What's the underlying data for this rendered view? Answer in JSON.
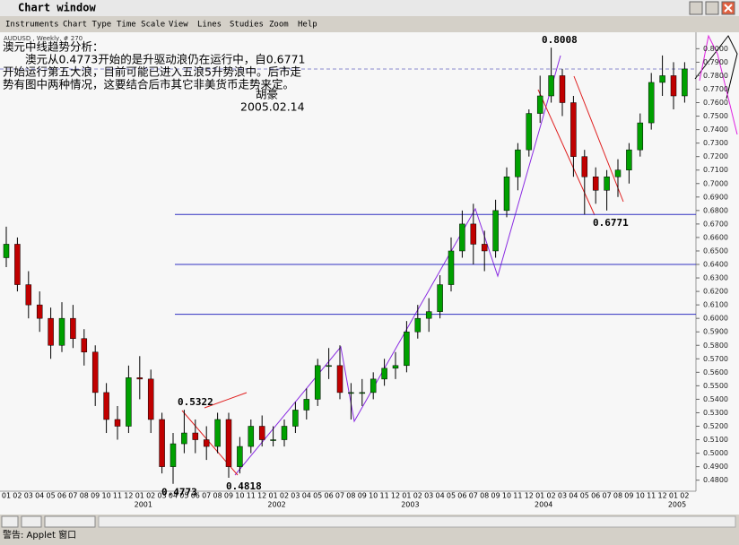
{
  "window": {
    "title": "Chart window",
    "menu": [
      "Instruments",
      "Chart Type",
      "Time Scale",
      "View",
      "Lines",
      "Studies",
      "Zoom",
      "Help"
    ],
    "status": "警告: Applet 窗口"
  },
  "chart_data": {
    "type": "candlestick",
    "symbol_label": "AUDUSD , Weekly, # 270",
    "annotation_lines": [
      "澳元中线趋势分析：",
      "　　澳元从0.4773开始的是升驱动浪仍在运行中，自0.6771",
      "开始运行第五大浪，目前可能已进入五浪5升势浪中。后市走",
      "势有图中两种情况，这要结合后市其它非美货币走势来定。",
      "胡豪",
      "2005.02.14"
    ],
    "price_labels": [
      0.5322,
      0.4773,
      0.4818,
      0.8008,
      0.6771
    ],
    "categories": [
      "01",
      "02",
      "03",
      "04",
      "05",
      "06",
      "07",
      "08",
      "09",
      "10",
      "11",
      "12",
      "01",
      "02",
      "03",
      "04",
      "05",
      "06",
      "07",
      "08",
      "09",
      "10",
      "11",
      "12",
      "01",
      "02",
      "03",
      "04",
      "05",
      "06",
      "07",
      "08",
      "09",
      "10",
      "11",
      "12",
      "01",
      "02",
      "03",
      "04",
      "05",
      "06",
      "07",
      "08",
      "09",
      "10",
      "11",
      "12",
      "01",
      "02",
      "03",
      "04",
      "05",
      "06",
      "07",
      "08",
      "09",
      "10",
      "11",
      "12",
      "01",
      "02"
    ],
    "years": [
      "2001",
      "2002",
      "2003",
      "2004",
      "2005"
    ],
    "open": [
      0.645,
      0.655,
      0.625,
      0.61,
      0.6,
      0.58,
      0.6,
      0.585,
      0.575,
      0.545,
      0.525,
      0.52,
      0.556,
      0.555,
      0.525,
      0.49,
      0.507,
      0.515,
      0.51,
      0.505,
      0.525,
      0.49,
      0.505,
      0.52,
      0.51,
      0.51,
      0.52,
      0.532,
      0.54,
      0.565,
      0.565,
      0.545,
      0.545,
      0.545,
      0.555,
      0.563,
      0.565,
      0.59,
      0.6,
      0.605,
      0.625,
      0.65,
      0.67,
      0.655,
      0.65,
      0.68,
      0.705,
      0.725,
      0.752,
      0.765,
      0.78,
      0.76,
      0.72,
      0.705,
      0.695,
      0.705,
      0.71,
      0.725,
      0.745,
      0.775,
      0.78,
      0.765
    ],
    "high": [
      0.668,
      0.66,
      0.635,
      0.62,
      0.608,
      0.612,
      0.61,
      0.592,
      0.58,
      0.552,
      0.535,
      0.565,
      0.572,
      0.562,
      0.53,
      0.515,
      0.5322,
      0.525,
      0.52,
      0.53,
      0.53,
      0.512,
      0.525,
      0.528,
      0.52,
      0.525,
      0.538,
      0.548,
      0.57,
      0.578,
      0.58,
      0.552,
      0.555,
      0.56,
      0.57,
      0.575,
      0.598,
      0.61,
      0.615,
      0.632,
      0.66,
      0.68,
      0.685,
      0.665,
      0.688,
      0.712,
      0.73,
      0.755,
      0.78,
      0.8008,
      0.785,
      0.765,
      0.725,
      0.712,
      0.71,
      0.718,
      0.73,
      0.752,
      0.782,
      0.795,
      0.79,
      0.79
    ],
    "low": [
      0.638,
      0.62,
      0.6,
      0.59,
      0.57,
      0.575,
      0.578,
      0.565,
      0.535,
      0.515,
      0.51,
      0.515,
      0.54,
      0.515,
      0.485,
      0.4773,
      0.5,
      0.5,
      0.495,
      0.5,
      0.4818,
      0.485,
      0.5,
      0.505,
      0.505,
      0.505,
      0.515,
      0.525,
      0.535,
      0.555,
      0.54,
      0.525,
      0.535,
      0.54,
      0.55,
      0.555,
      0.56,
      0.585,
      0.59,
      0.6,
      0.62,
      0.645,
      0.64,
      0.635,
      0.645,
      0.675,
      0.695,
      0.72,
      0.745,
      0.76,
      0.75,
      0.705,
      0.6771,
      0.685,
      0.68,
      0.69,
      0.7,
      0.72,
      0.74,
      0.765,
      0.755,
      0.76
    ],
    "close": [
      0.655,
      0.625,
      0.61,
      0.6,
      0.58,
      0.6,
      0.585,
      0.575,
      0.545,
      0.525,
      0.52,
      0.556,
      0.555,
      0.525,
      0.49,
      0.507,
      0.515,
      0.51,
      0.505,
      0.525,
      0.49,
      0.505,
      0.52,
      0.51,
      0.51,
      0.52,
      0.532,
      0.54,
      0.565,
      0.565,
      0.545,
      0.545,
      0.545,
      0.555,
      0.563,
      0.565,
      0.59,
      0.6,
      0.605,
      0.625,
      0.65,
      0.67,
      0.655,
      0.65,
      0.68,
      0.705,
      0.725,
      0.752,
      0.765,
      0.78,
      0.76,
      0.72,
      0.705,
      0.695,
      0.705,
      0.71,
      0.725,
      0.745,
      0.775,
      0.78,
      0.765,
      0.785
    ],
    "up_color": "#00a000",
    "down_color": "#c00000",
    "levels": [
      0.6771,
      0.64,
      0.603
    ],
    "level_color": "#3030c0",
    "reference_line": 0.7849,
    "ylim": [
      0.4718,
      0.8122
    ],
    "yticks": [
      {
        "value": 0.48,
        "label": "0.4800"
      },
      {
        "value": 0.49,
        "label": "0.4900"
      },
      {
        "value": 0.5,
        "label": "0.5000"
      },
      {
        "value": 0.51,
        "label": "0.5100"
      },
      {
        "value": 0.52,
        "label": "0.5200"
      },
      {
        "value": 0.53,
        "label": "0.5300"
      },
      {
        "value": 0.54,
        "label": "0.5400"
      },
      {
        "value": 0.55,
        "label": "0.5500"
      },
      {
        "value": 0.56,
        "label": "0.5600"
      },
      {
        "value": 0.57,
        "label": "0.5700"
      },
      {
        "value": 0.58,
        "label": "0.5800"
      },
      {
        "value": 0.59,
        "label": "0.5900"
      },
      {
        "value": 0.6,
        "label": "0.6000"
      },
      {
        "value": 0.61,
        "label": "0.6100"
      },
      {
        "value": 0.62,
        "label": "0.6200"
      },
      {
        "value": 0.63,
        "label": "0.6300"
      },
      {
        "value": 0.64,
        "label": "0.6400"
      },
      {
        "value": 0.65,
        "label": "0.6500"
      },
      {
        "value": 0.66,
        "label": "0.6600"
      },
      {
        "value": 0.67,
        "label": "0.6700"
      },
      {
        "value": 0.68,
        "label": "0.6800"
      },
      {
        "value": 0.69,
        "label": "0.6900"
      },
      {
        "value": 0.7,
        "label": "0.7000"
      },
      {
        "value": 0.71,
        "label": "0.7100"
      },
      {
        "value": 0.72,
        "label": "0.7200"
      },
      {
        "value": 0.73,
        "label": "0.7300"
      },
      {
        "value": 0.74,
        "label": "0.7400"
      },
      {
        "value": 0.75,
        "label": "0.7500"
      },
      {
        "value": 0.76,
        "label": "0.7600"
      },
      {
        "value": 0.77,
        "label": "0.7700"
      },
      {
        "value": 0.78,
        "label": "0.7800"
      },
      {
        "value": 0.79,
        "label": "0.7900"
      },
      {
        "value": 0.8,
        "label": "0.8000"
      }
    ]
  }
}
